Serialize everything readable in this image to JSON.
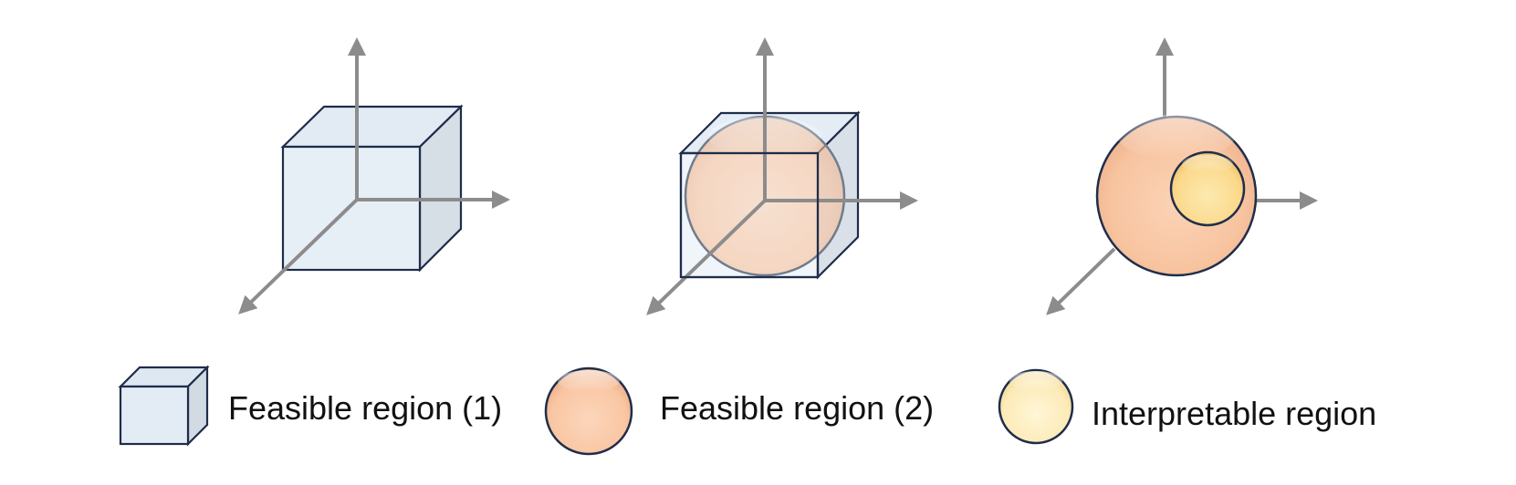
{
  "colors": {
    "axis": "#8c8c8c",
    "outline": "#1f2d4a",
    "cube_front": "#e3ecf5",
    "cube_top": "#dde8f2",
    "cube_side": "#d2dae3",
    "feasible_2": "#f8c6a3",
    "interpretable": "#fbe2a0",
    "interpretable_legend": "#fdf0c0"
  },
  "icons": {
    "feasible_1": "cube-icon",
    "feasible_2": "sphere-icon",
    "interpretable": "sphere-icon"
  },
  "legend": {
    "feasible_1": "Feasible region (1)",
    "feasible_2": "Feasible region (2)",
    "interpretable": "Interpretable region"
  }
}
